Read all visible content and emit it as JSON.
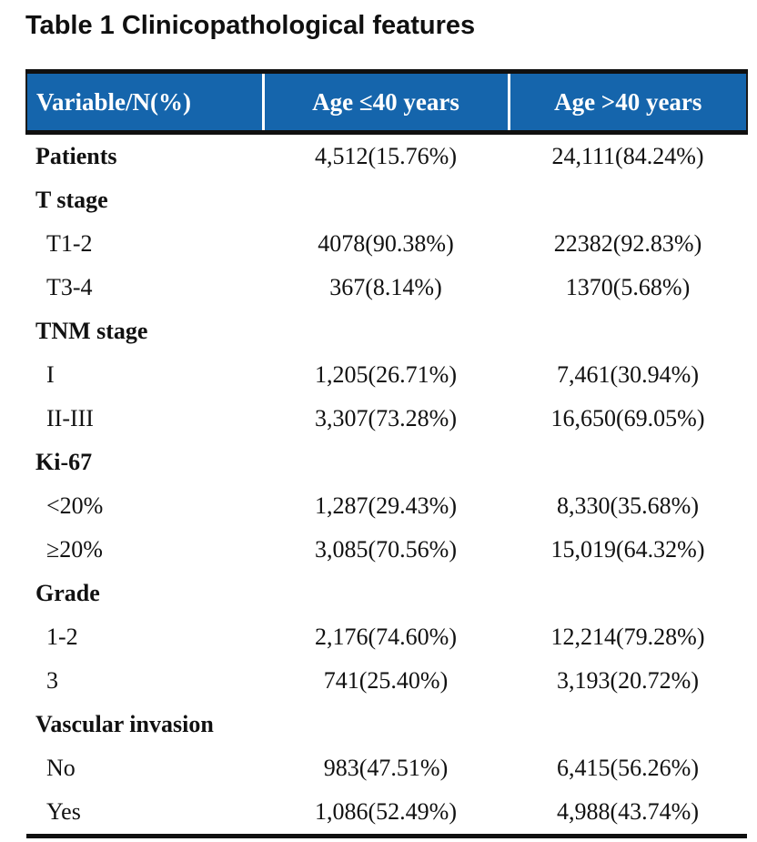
{
  "title": "Table 1 Clinicopathological features",
  "colors": {
    "header_bg": "#1565ac",
    "header_text": "#ffffff",
    "border": "#101010",
    "body_text": "#111111"
  },
  "table": {
    "columns": {
      "variable": "Variable/N(%)",
      "age_le40": "Age ≤40 years",
      "age_gt40": "Age >40 years"
    },
    "rows": [
      {
        "label": "Patients",
        "type": "section",
        "age_le40": "4,512(15.76%)",
        "age_gt40": "24,111(84.24%)"
      },
      {
        "label": "T stage",
        "type": "section",
        "age_le40": "",
        "age_gt40": ""
      },
      {
        "label": "T1-2",
        "type": "sub",
        "age_le40": "4078(90.38%)",
        "age_gt40": "22382(92.83%)"
      },
      {
        "label": "T3-4",
        "type": "sub",
        "age_le40": "367(8.14%)",
        "age_gt40": "1370(5.68%)"
      },
      {
        "label": "TNM stage",
        "type": "section",
        "age_le40": "",
        "age_gt40": ""
      },
      {
        "label": "I",
        "type": "sub",
        "age_le40": "1,205(26.71%)",
        "age_gt40": "7,461(30.94%)"
      },
      {
        "label": "II-III",
        "type": "sub",
        "age_le40": "3,307(73.28%)",
        "age_gt40": "16,650(69.05%)"
      },
      {
        "label": "Ki-67",
        "type": "section",
        "age_le40": "",
        "age_gt40": ""
      },
      {
        "label": "<20%",
        "type": "sub",
        "age_le40": "1,287(29.43%)",
        "age_gt40": "8,330(35.68%)"
      },
      {
        "label": "≥20%",
        "type": "sub",
        "age_le40": "3,085(70.56%)",
        "age_gt40": "15,019(64.32%)"
      },
      {
        "label": "Grade",
        "type": "section",
        "age_le40": "",
        "age_gt40": ""
      },
      {
        "label": "1-2",
        "type": "sub",
        "age_le40": "2,176(74.60%)",
        "age_gt40": "12,214(79.28%)"
      },
      {
        "label": "3",
        "type": "sub",
        "age_le40": "741(25.40%)",
        "age_gt40": "3,193(20.72%)"
      },
      {
        "label": "Vascular invasion",
        "type": "section",
        "age_le40": "",
        "age_gt40": ""
      },
      {
        "label": "No",
        "type": "sub",
        "age_le40": "983(47.51%)",
        "age_gt40": "6,415(56.26%)"
      },
      {
        "label": "Yes",
        "type": "sub",
        "age_le40": "1,086(52.49%)",
        "age_gt40": "4,988(43.74%)"
      }
    ]
  }
}
